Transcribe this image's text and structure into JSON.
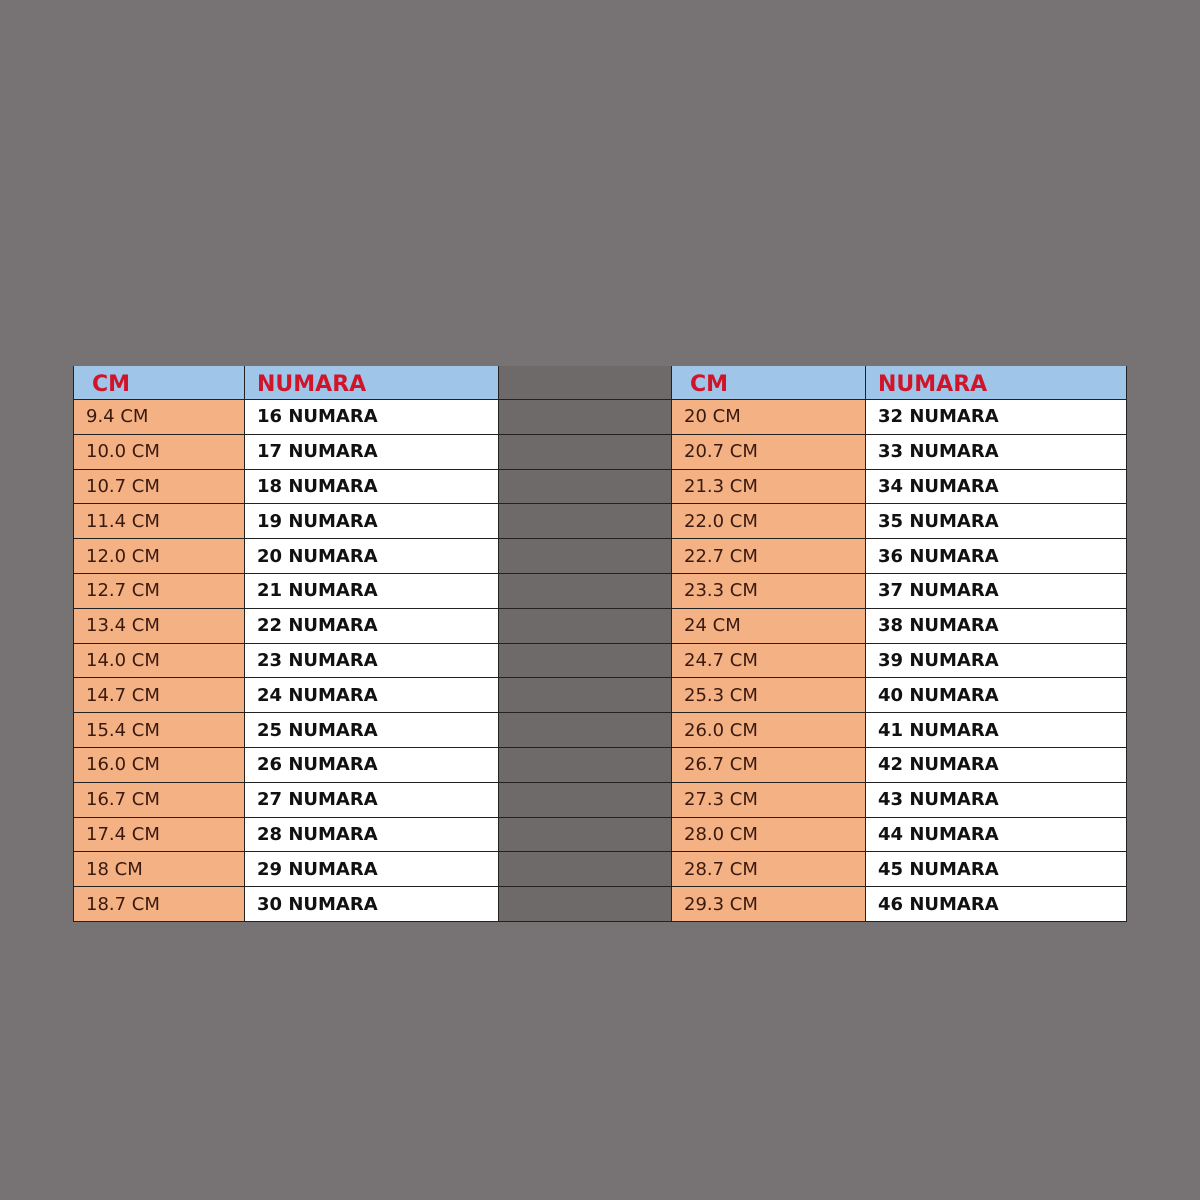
{
  "colors": {
    "background": "#777273",
    "header": "#9fc5e8",
    "header_text": "#d0142a",
    "cm_cell": "#f4b183",
    "numara_cell": "#ffffff"
  },
  "left": {
    "headers": [
      "CM",
      "NUMARA"
    ],
    "rows": [
      [
        "9.4 CM",
        "16 NUMARA"
      ],
      [
        "10.0 CM",
        "17 NUMARA"
      ],
      [
        "10.7 CM",
        "18 NUMARA"
      ],
      [
        "11.4 CM",
        "19 NUMARA"
      ],
      [
        "12.0 CM",
        "20 NUMARA"
      ],
      [
        "12.7 CM",
        "21 NUMARA"
      ],
      [
        "13.4 CM",
        "22 NUMARA"
      ],
      [
        "14.0 CM",
        "23 NUMARA"
      ],
      [
        "14.7 CM",
        "24 NUMARA"
      ],
      [
        "15.4 CM",
        "25 NUMARA"
      ],
      [
        "16.0 CM",
        "26 NUMARA"
      ],
      [
        "16.7 CM",
        "27 NUMARA"
      ],
      [
        "17.4 CM",
        "28 NUMARA"
      ],
      [
        "18 CM",
        "29 NUMARA"
      ],
      [
        "18.7 CM",
        "30 NUMARA"
      ]
    ]
  },
  "right": {
    "headers": [
      "CM",
      "NUMARA"
    ],
    "rows": [
      [
        "20 CM",
        "32 NUMARA"
      ],
      [
        "20.7 CM",
        "33 NUMARA"
      ],
      [
        "21.3 CM",
        "34 NUMARA"
      ],
      [
        "22.0 CM",
        "35 NUMARA"
      ],
      [
        "22.7 CM",
        "36 NUMARA"
      ],
      [
        "23.3 CM",
        "37 NUMARA"
      ],
      [
        "24 CM",
        "38 NUMARA"
      ],
      [
        "24.7 CM",
        "39 NUMARA"
      ],
      [
        "25.3 CM",
        "40 NUMARA"
      ],
      [
        "26.0 CM",
        "41 NUMARA"
      ],
      [
        "26.7 CM",
        "42 NUMARA"
      ],
      [
        "27.3 CM",
        "43 NUMARA"
      ],
      [
        "28.0 CM",
        "44 NUMARA"
      ],
      [
        "28.7 CM",
        "45 NUMARA"
      ],
      [
        "29.3 CM",
        "46 NUMARA"
      ]
    ]
  }
}
